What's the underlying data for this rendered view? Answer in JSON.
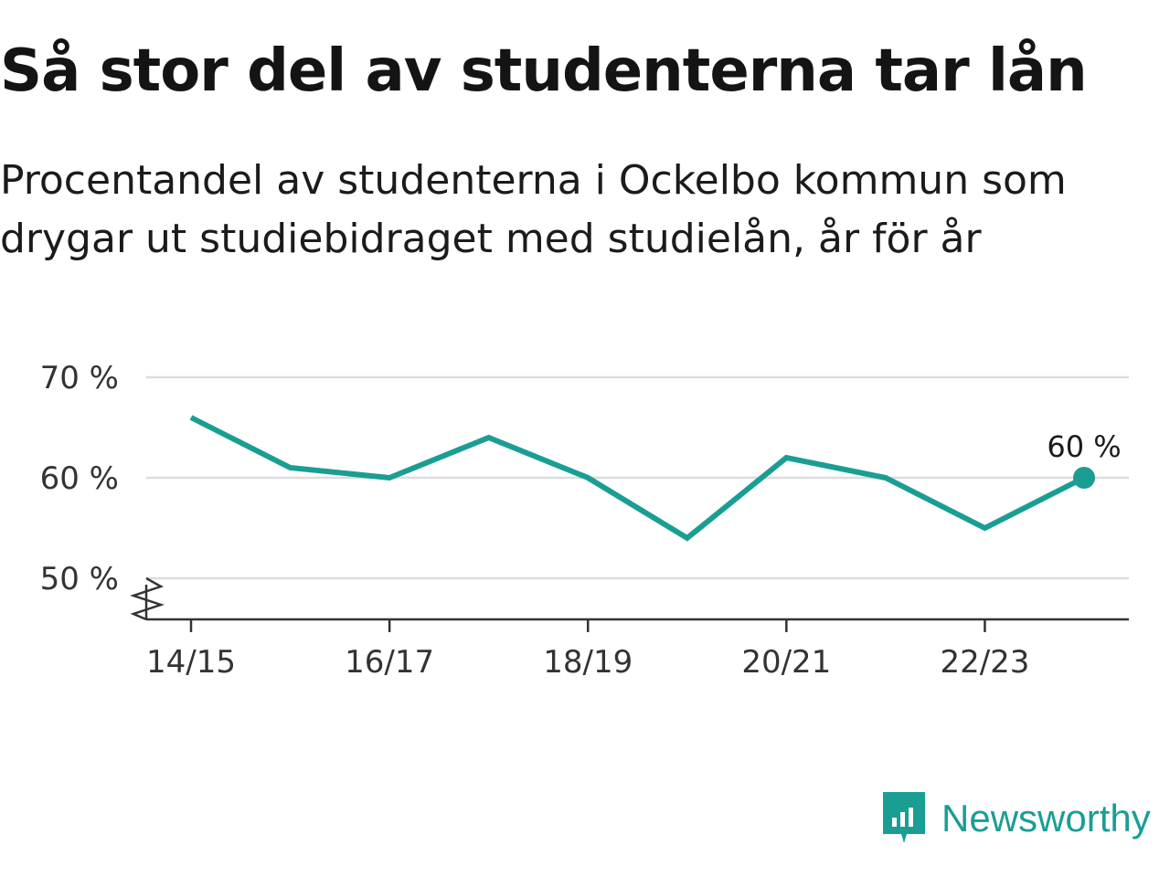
{
  "header": {
    "title": "Så stor del av studenterna tar lån",
    "subtitle": "Procentandel av studenterna i Ockelbo kommun som drygar ut studiebidraget med studielån, år för år"
  },
  "chart_data": {
    "type": "line",
    "x": [
      "14/15",
      "15/16",
      "16/17",
      "17/18",
      "18/19",
      "19/20",
      "20/21",
      "21/22",
      "22/23",
      "23/24"
    ],
    "values": [
      66,
      61,
      60,
      64,
      60,
      54,
      62,
      60,
      55,
      60
    ],
    "x_tick_labels": [
      "14/15",
      "16/17",
      "18/19",
      "20/21",
      "22/23"
    ],
    "y_ticks": [
      50,
      60,
      70
    ],
    "y_tick_labels": [
      "50 %",
      "60 %",
      "70 %"
    ],
    "ylim": [
      46,
      70
    ],
    "y_axis_break": true,
    "grid": true,
    "last_value_label": "60 %",
    "line_color": "#1a9e94"
  },
  "brand": {
    "name": "Newsworthy",
    "icon": "newsworthy-logo-icon",
    "color": "#1a9e94"
  }
}
